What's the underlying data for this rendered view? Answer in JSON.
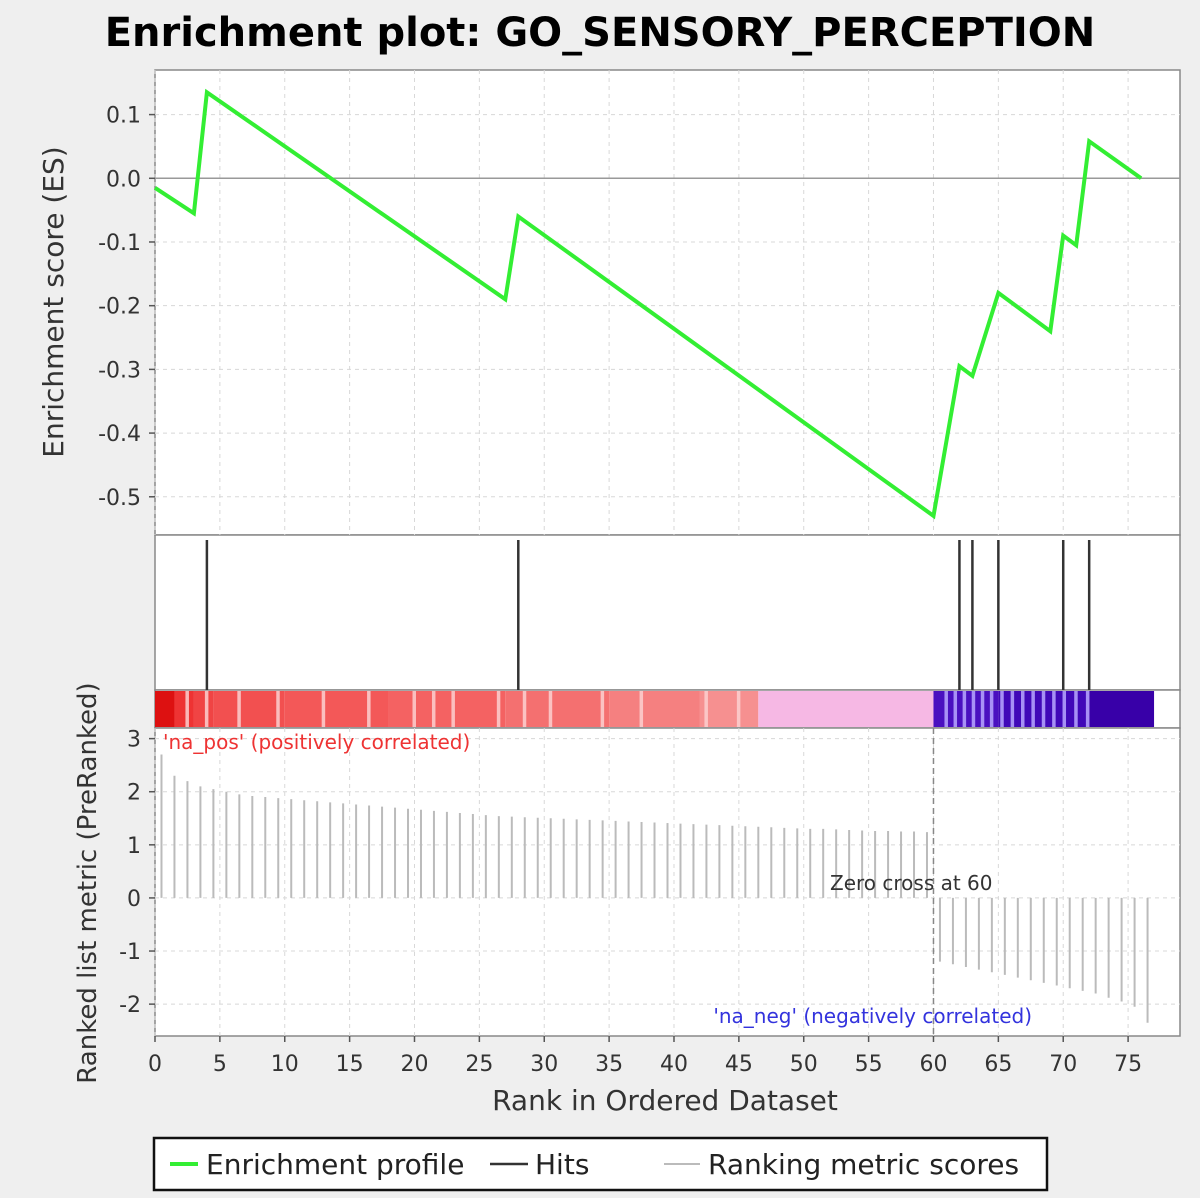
{
  "chart_data": {
    "type": "line",
    "title": "Enrichment plot: GO_SENSORY_PERCEPTION",
    "x": {
      "label": "Rank in Ordered Dataset",
      "lim": [
        0,
        79
      ],
      "ticks": [
        0,
        5,
        10,
        15,
        20,
        25,
        30,
        35,
        40,
        45,
        50,
        55,
        60,
        65,
        70,
        75
      ]
    },
    "es_panel": {
      "ylabel": "Enrichment score (ES)",
      "ylim": [
        -0.56,
        0.17
      ],
      "yticks": [
        0.1,
        0.0,
        -0.1,
        -0.2,
        -0.3,
        -0.4,
        -0.5
      ],
      "ytick_labels": [
        "0.1",
        "0.0",
        "-0.1",
        "-0.2",
        "-0.3",
        "-0.4",
        "-0.5"
      ],
      "series": [
        {
          "name": "Enrichment profile",
          "color": "#33ee33",
          "points": [
            [
              0,
              -0.015
            ],
            [
              3,
              -0.055
            ],
            [
              4,
              0.135
            ],
            [
              27,
              -0.19
            ],
            [
              28,
              -0.06
            ],
            [
              60,
              -0.53
            ],
            [
              62,
              -0.295
            ],
            [
              63,
              -0.31
            ],
            [
              65,
              -0.18
            ],
            [
              69,
              -0.24
            ],
            [
              70,
              -0.09
            ],
            [
              71,
              -0.105
            ],
            [
              72,
              0.058
            ],
            [
              76,
              0.0
            ]
          ]
        }
      ],
      "grid": true
    },
    "hits": {
      "name": "Hits",
      "color": "#333333",
      "ranks": [
        4,
        28,
        62,
        63,
        65,
        70,
        72
      ]
    },
    "color_bar": {
      "pos_color": "#ee2222",
      "neg_color": "#3300aa",
      "segments": [
        {
          "from": 0,
          "to": 1.5,
          "color": "#dd1111"
        },
        {
          "from": 1.5,
          "to": 3,
          "color": "#ee3333"
        },
        {
          "from": 3,
          "to": 4.5,
          "color": "#f04444"
        },
        {
          "from": 4.5,
          "to": 10,
          "color": "#f25050"
        },
        {
          "from": 10,
          "to": 18,
          "color": "#f35858"
        },
        {
          "from": 18,
          "to": 27,
          "color": "#f46262"
        },
        {
          "from": 27,
          "to": 35,
          "color": "#f47070"
        },
        {
          "from": 35,
          "to": 42,
          "color": "#f58080"
        },
        {
          "from": 42,
          "to": 46.5,
          "color": "#f69090"
        },
        {
          "from": 46.5,
          "to": 60,
          "color": "#f6b8e4"
        },
        {
          "from": 60,
          "to": 65,
          "color": "#4a10c0"
        },
        {
          "from": 65,
          "to": 72,
          "color": "#4008b8"
        },
        {
          "from": 72,
          "to": 77,
          "color": "#3800a8"
        }
      ],
      "stripes": [
        2.5,
        4,
        6.5,
        9.5,
        13,
        16.5,
        20,
        21.5,
        23,
        26.5,
        28.5,
        30.5,
        34.5,
        37.5,
        42.5,
        45,
        61,
        61.7,
        62.4,
        63.1,
        63.8,
        64.5,
        65.3,
        66.1,
        66.9,
        67.7,
        68.5,
        69.3,
        70.1,
        71,
        71.9
      ]
    },
    "metric_panel": {
      "ylabel": "Ranked list metric (PreRanked)",
      "ylim": [
        -2.6,
        3.2
      ],
      "yticks": [
        3,
        2,
        1,
        0,
        -1,
        -2
      ],
      "series": [
        {
          "name": "Ranking metric scores",
          "color": "#bbbbbb",
          "values": [
            2.7,
            2.3,
            2.2,
            2.1,
            2.05,
            2.0,
            1.95,
            1.92,
            1.9,
            1.88,
            1.86,
            1.84,
            1.82,
            1.8,
            1.78,
            1.76,
            1.74,
            1.72,
            1.7,
            1.68,
            1.66,
            1.64,
            1.62,
            1.6,
            1.58,
            1.56,
            1.54,
            1.53,
            1.52,
            1.51,
            1.5,
            1.49,
            1.48,
            1.47,
            1.46,
            1.45,
            1.44,
            1.43,
            1.42,
            1.41,
            1.4,
            1.39,
            1.38,
            1.37,
            1.36,
            1.35,
            1.34,
            1.33,
            1.32,
            1.31,
            1.3,
            1.3,
            1.29,
            1.28,
            1.27,
            1.26,
            1.26,
            1.25,
            1.25,
            1.24,
            -1.2,
            -1.25,
            -1.3,
            -1.35,
            -1.4,
            -1.45,
            -1.5,
            -1.55,
            -1.6,
            -1.65,
            -1.7,
            -1.75,
            -1.8,
            -1.88,
            -1.95,
            -2.05,
            -2.35
          ]
        }
      ],
      "zero_cross_rank": 60,
      "zero_cross_label": "Zero cross at 60",
      "pos_label": "'na_pos' (positively correlated)",
      "neg_label": "'na_neg' (negatively correlated)",
      "pos_label_color": "#ee3333",
      "neg_label_color": "#3333dd"
    },
    "legend": {
      "placement": "bottom",
      "entries": [
        {
          "label": "Enrichment profile",
          "color": "#33ee33"
        },
        {
          "label": "Hits",
          "color": "#333333"
        },
        {
          "label": "Ranking metric scores",
          "color": "#bbbbbb"
        }
      ]
    }
  }
}
